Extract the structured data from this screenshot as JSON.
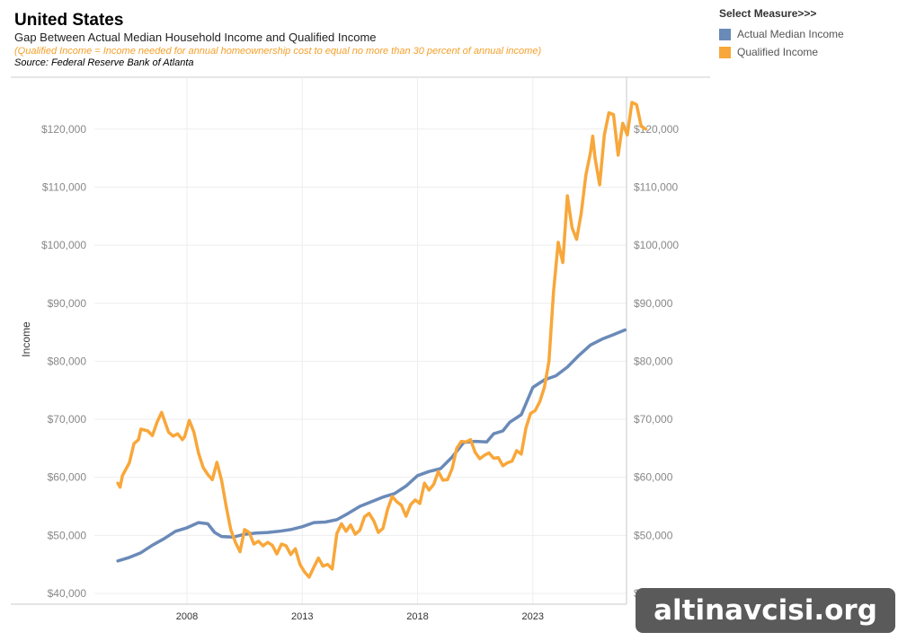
{
  "header": {
    "title": "United States",
    "subtitle": "Gap Between Actual Median Household Income and Qualified Income",
    "note": "(Qualified Income = Income needed for annual homeownership cost to equal no more than 30 percent of annual income)",
    "source": "Source: Federal Reserve Bank of Atlanta"
  },
  "legend": {
    "title": "Select Measure>>>",
    "items": [
      {
        "label": "Actual Median Income",
        "color": "#6a8ab8"
      },
      {
        "label": "Qualified Income",
        "color": "#f8a73a"
      }
    ]
  },
  "watermark": "altinavcisi.org",
  "chart_data": {
    "type": "line",
    "ylabel": "Income",
    "ylim": [
      40000,
      125000
    ],
    "xlim": [
      2004.0,
      2027.9
    ],
    "x_ticks": [
      2008,
      2013,
      2018,
      2023
    ],
    "x_tick_labels": [
      "2008",
      "2013",
      "2018",
      "2023"
    ],
    "y_ticks": [
      40000,
      50000,
      60000,
      70000,
      80000,
      90000,
      100000,
      110000,
      120000
    ],
    "y_tick_labels": [
      "$40,000",
      "$50,000",
      "$60,000",
      "$70,000",
      "$80,000",
      "$90,000",
      "$100,000",
      "$110,000",
      "$120,000"
    ],
    "grid": true,
    "series": [
      {
        "name": "Actual Median Income",
        "color": "#6a8ab8",
        "points": [
          [
            2005.0,
            45600
          ],
          [
            2005.5,
            46200
          ],
          [
            2006.0,
            47000
          ],
          [
            2006.5,
            48300
          ],
          [
            2007.0,
            49400
          ],
          [
            2007.5,
            50700
          ],
          [
            2008.0,
            51300
          ],
          [
            2008.5,
            52200
          ],
          [
            2008.9,
            52000
          ],
          [
            2009.2,
            50500
          ],
          [
            2009.5,
            49800
          ],
          [
            2010.0,
            49700
          ],
          [
            2010.5,
            50200
          ],
          [
            2011.0,
            50400
          ],
          [
            2011.5,
            50500
          ],
          [
            2012.0,
            50700
          ],
          [
            2012.5,
            51000
          ],
          [
            2013.0,
            51500
          ],
          [
            2013.5,
            52200
          ],
          [
            2014.0,
            52300
          ],
          [
            2014.5,
            52700
          ],
          [
            2015.0,
            53800
          ],
          [
            2015.5,
            55000
          ],
          [
            2016.0,
            55800
          ],
          [
            2016.5,
            56600
          ],
          [
            2017.0,
            57200
          ],
          [
            2017.5,
            58500
          ],
          [
            2018.0,
            60300
          ],
          [
            2018.5,
            61000
          ],
          [
            2019.0,
            61500
          ],
          [
            2019.5,
            63500
          ],
          [
            2020.0,
            66000
          ],
          [
            2020.5,
            66200
          ],
          [
            2021.0,
            66100
          ],
          [
            2021.3,
            67500
          ],
          [
            2021.7,
            68000
          ],
          [
            2022.0,
            69500
          ],
          [
            2022.5,
            70800
          ],
          [
            2023.0,
            75500
          ],
          [
            2023.5,
            76800
          ],
          [
            2024.0,
            77500
          ],
          [
            2024.5,
            79000
          ],
          [
            2025.0,
            81000
          ],
          [
            2025.5,
            82800
          ],
          [
            2026.0,
            83800
          ],
          [
            2026.5,
            84600
          ],
          [
            2027.0,
            85400
          ]
        ]
      },
      {
        "name": "Qualified Income",
        "color": "#f8a73a",
        "points": [
          [
            2005.0,
            59000
          ],
          [
            2005.1,
            58300
          ],
          [
            2005.2,
            60300
          ],
          [
            2005.5,
            62500
          ],
          [
            2005.7,
            65800
          ],
          [
            2005.9,
            66500
          ],
          [
            2006.0,
            68300
          ],
          [
            2006.3,
            68000
          ],
          [
            2006.5,
            67200
          ],
          [
            2006.7,
            69500
          ],
          [
            2006.9,
            71200
          ],
          [
            2007.2,
            67800
          ],
          [
            2007.4,
            67100
          ],
          [
            2007.6,
            67500
          ],
          [
            2007.8,
            66500
          ],
          [
            2007.9,
            67000
          ],
          [
            2008.1,
            69800
          ],
          [
            2008.3,
            67800
          ],
          [
            2008.5,
            64200
          ],
          [
            2008.7,
            61700
          ],
          [
            2008.9,
            60500
          ],
          [
            2009.1,
            59600
          ],
          [
            2009.3,
            62600
          ],
          [
            2009.5,
            59500
          ],
          [
            2009.7,
            55000
          ],
          [
            2009.9,
            51000
          ],
          [
            2010.1,
            48800
          ],
          [
            2010.3,
            47200
          ],
          [
            2010.5,
            51000
          ],
          [
            2010.7,
            50500
          ],
          [
            2010.9,
            48500
          ],
          [
            2011.1,
            49000
          ],
          [
            2011.3,
            48200
          ],
          [
            2011.5,
            48800
          ],
          [
            2011.7,
            48300
          ],
          [
            2011.9,
            46800
          ],
          [
            2012.1,
            48500
          ],
          [
            2012.3,
            48200
          ],
          [
            2012.5,
            46700
          ],
          [
            2012.7,
            47700
          ],
          [
            2012.9,
            45000
          ],
          [
            2013.1,
            43700
          ],
          [
            2013.3,
            42800
          ],
          [
            2013.5,
            44500
          ],
          [
            2013.7,
            46100
          ],
          [
            2013.9,
            44700
          ],
          [
            2014.1,
            45000
          ],
          [
            2014.3,
            44200
          ],
          [
            2014.5,
            50300
          ],
          [
            2014.7,
            52000
          ],
          [
            2014.9,
            50700
          ],
          [
            2015.1,
            51800
          ],
          [
            2015.3,
            50200
          ],
          [
            2015.5,
            50900
          ],
          [
            2015.7,
            53200
          ],
          [
            2015.9,
            53800
          ],
          [
            2016.1,
            52500
          ],
          [
            2016.3,
            50500
          ],
          [
            2016.5,
            51200
          ],
          [
            2016.7,
            54500
          ],
          [
            2016.9,
            56700
          ],
          [
            2017.1,
            55800
          ],
          [
            2017.3,
            55200
          ],
          [
            2017.5,
            53300
          ],
          [
            2017.7,
            55300
          ],
          [
            2017.9,
            56100
          ],
          [
            2018.1,
            55500
          ],
          [
            2018.3,
            59000
          ],
          [
            2018.5,
            57800
          ],
          [
            2018.7,
            58800
          ],
          [
            2018.9,
            61000
          ],
          [
            2019.1,
            59500
          ],
          [
            2019.3,
            59600
          ],
          [
            2019.5,
            61500
          ],
          [
            2019.7,
            65000
          ],
          [
            2019.9,
            66200
          ],
          [
            2020.1,
            66100
          ],
          [
            2020.3,
            66500
          ],
          [
            2020.5,
            64300
          ],
          [
            2020.7,
            63200
          ],
          [
            2020.9,
            63800
          ],
          [
            2021.1,
            64200
          ],
          [
            2021.3,
            63300
          ],
          [
            2021.5,
            63400
          ],
          [
            2021.7,
            62000
          ],
          [
            2021.9,
            62500
          ],
          [
            2022.1,
            62800
          ],
          [
            2022.3,
            64600
          ],
          [
            2022.5,
            64000
          ],
          [
            2022.7,
            68500
          ],
          [
            2022.9,
            71000
          ],
          [
            2023.1,
            71500
          ],
          [
            2023.3,
            73000
          ],
          [
            2023.5,
            75500
          ],
          [
            2023.7,
            80000
          ],
          [
            2023.9,
            92000
          ],
          [
            2024.1,
            100500
          ],
          [
            2024.3,
            97000
          ],
          [
            2024.5,
            108500
          ],
          [
            2024.7,
            103000
          ],
          [
            2024.9,
            101000
          ],
          [
            2025.1,
            105500
          ],
          [
            2025.3,
            112000
          ],
          [
            2025.5,
            116000
          ],
          [
            2025.6,
            118800
          ],
          [
            2025.7,
            115000
          ],
          [
            2025.9,
            110400
          ],
          [
            2026.1,
            119000
          ],
          [
            2026.3,
            122800
          ],
          [
            2026.5,
            122500
          ],
          [
            2026.7,
            115500
          ],
          [
            2026.9,
            121000
          ],
          [
            2027.1,
            119000
          ],
          [
            2027.3,
            124600
          ],
          [
            2027.5,
            124200
          ],
          [
            2027.7,
            120500
          ],
          [
            2027.9,
            120000
          ]
        ]
      }
    ]
  }
}
